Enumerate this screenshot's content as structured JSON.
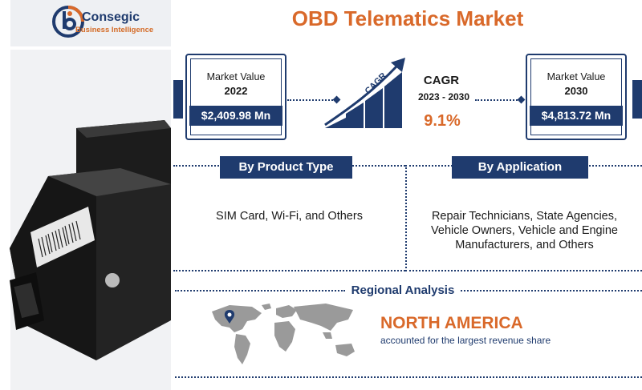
{
  "brand": {
    "name": "Consegic",
    "tagline": "Business Intelligence",
    "primary_color": "#1f3b6e",
    "accent_color": "#d9692a"
  },
  "title": "OBD Telematics Market",
  "market_2022": {
    "label": "Market Value",
    "year": "2022",
    "value": "$2,409.98 Mn"
  },
  "market_2030": {
    "label": "Market Value",
    "year": "2030",
    "value": "$4,813.72 Mn"
  },
  "cagr": {
    "graphic_text": "CAGR",
    "title": "CAGR",
    "years": "2023 - 2030",
    "value": "9.1%"
  },
  "segments": {
    "product": {
      "heading": "By Product Type",
      "text": "SIM Card, Wi-Fi, and Others"
    },
    "application": {
      "heading": "By Application",
      "lines": [
        "Repair Technicians, State Agencies,",
        "Vehicle Owners, Vehicle and Engine",
        "Manufacturers, and Others"
      ]
    }
  },
  "regional": {
    "heading": "Regional Analysis",
    "region": "NORTH AMERICA",
    "description": "accounted for the largest revenue share"
  }
}
